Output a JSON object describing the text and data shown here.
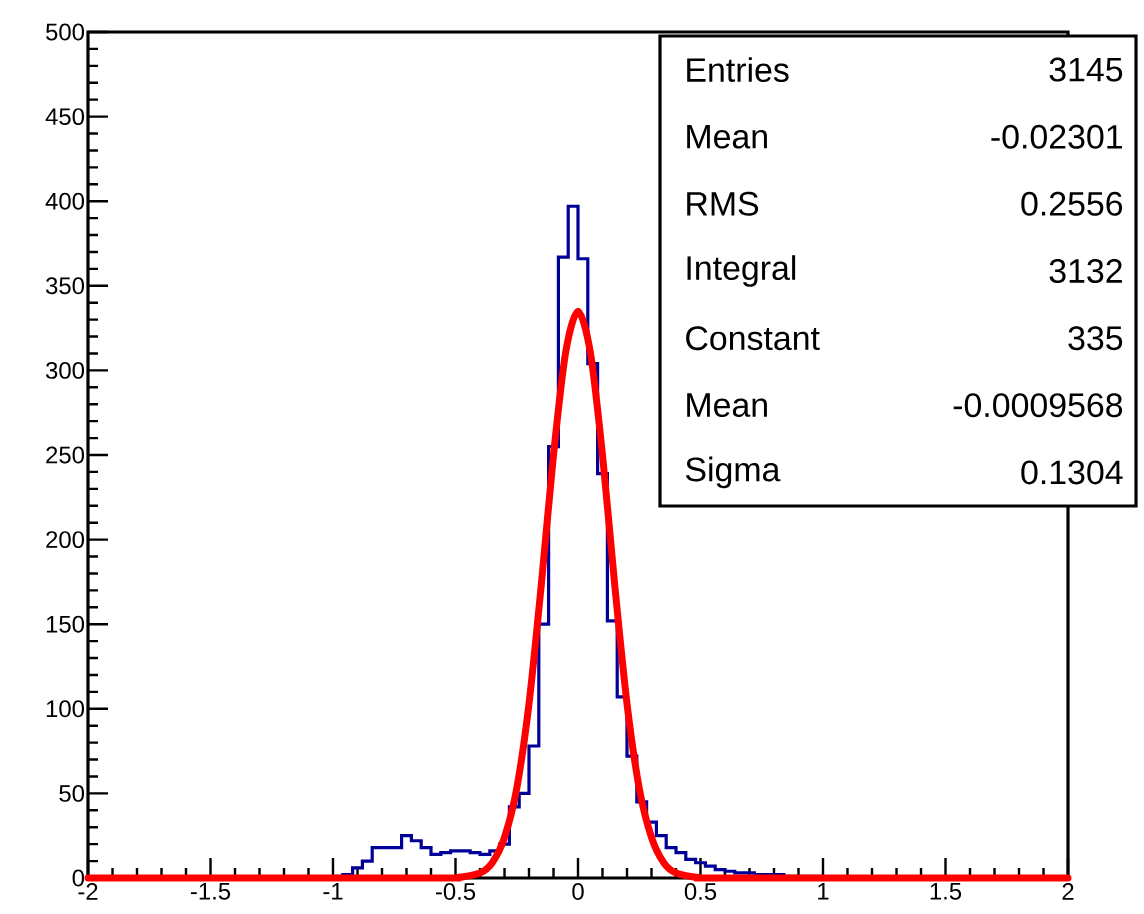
{
  "chart_data": {
    "type": "histogram",
    "xlim": [
      -2,
      2
    ],
    "ylim": [
      0,
      500
    ],
    "xticks": [
      -2,
      -1.5,
      -1,
      -0.5,
      0,
      0.5,
      1,
      1.5,
      2
    ],
    "yticks": [
      0,
      50,
      100,
      150,
      200,
      250,
      300,
      350,
      400,
      450,
      500
    ],
    "series": [
      {
        "color": "#000099",
        "bins": [
          -2,
          -1.96,
          -1.92,
          -1.88,
          -1.84,
          -1.8,
          -1.76,
          -1.72,
          -1.68,
          -1.64,
          -1.6,
          -1.56,
          -1.52,
          -1.48,
          -1.44,
          -1.4,
          -1.36,
          -1.32,
          -1.28,
          -1.24,
          -1.2,
          -1.16,
          -1.12,
          -1.08,
          -1.04,
          -1,
          -0.96,
          -0.92,
          -0.88,
          -0.84,
          -0.8,
          -0.76,
          -0.72,
          -0.68,
          -0.64,
          -0.6,
          -0.56,
          -0.52,
          -0.48,
          -0.44,
          -0.4,
          -0.36,
          -0.32,
          -0.28,
          -0.24,
          -0.2,
          -0.16,
          -0.12,
          -0.08,
          -0.04,
          0,
          0.04,
          0.08,
          0.12,
          0.16,
          0.2,
          0.24,
          0.28,
          0.32,
          0.36,
          0.4,
          0.44,
          0.48,
          0.52,
          0.56,
          0.6,
          0.64,
          0.68,
          0.72,
          0.76,
          0.8,
          0.84,
          0.88,
          0.92,
          0.96,
          1,
          1.04,
          1.08,
          1.12,
          1.16,
          1.2,
          1.24,
          1.28,
          1.32,
          1.36,
          1.4,
          1.44,
          1.48,
          1.52,
          1.56,
          1.6,
          1.64,
          1.68,
          1.72,
          1.76,
          1.8,
          1.84,
          1.88,
          1.92,
          1.96,
          2
        ],
        "values": [
          0,
          0,
          0,
          0,
          0,
          0,
          0,
          0,
          0,
          0,
          0,
          0,
          0,
          0,
          0,
          0,
          0,
          0,
          0,
          0,
          0,
          0,
          0,
          0,
          0,
          1,
          2,
          6,
          10,
          18,
          18,
          18,
          25,
          22,
          18,
          14,
          15,
          16,
          16,
          15,
          14,
          16,
          20,
          42,
          50,
          78,
          150,
          255,
          367,
          397,
          366,
          304,
          239,
          152,
          107,
          72,
          45,
          33,
          25,
          18,
          15,
          11,
          9,
          7,
          5,
          4,
          3,
          3,
          2,
          2,
          2,
          1,
          1,
          1,
          1,
          0,
          0,
          0,
          0,
          0,
          0,
          0,
          0,
          0,
          0,
          0,
          0,
          0,
          0,
          0,
          0,
          0,
          0,
          0,
          0,
          0,
          0,
          0,
          0,
          0
        ]
      },
      {
        "type": "line",
        "color": "#ff0000",
        "x": [
          -2,
          -0.6,
          -0.5,
          -0.4,
          -0.35,
          -0.3,
          -0.25,
          -0.2,
          -0.15,
          -0.1,
          -0.05,
          0,
          0.05,
          0.1,
          0.15,
          0.2,
          0.25,
          0.3,
          0.35,
          0.4,
          0.5,
          0.6,
          2
        ],
        "values": [
          0,
          0,
          0.2,
          3,
          9,
          24,
          53,
          103,
          173,
          250,
          311,
          335,
          311,
          250,
          173,
          103,
          53,
          24,
          9,
          3,
          0.2,
          0,
          0
        ]
      }
    ],
    "annotations": [
      "Entries",
      "3145",
      "Mean",
      "-0.02301",
      "RMS",
      "0.2556",
      "Integral",
      "3132",
      "Constant",
      "335",
      "Mean",
      "-0.0009568",
      "Sigma",
      "0.1304"
    ]
  }
}
